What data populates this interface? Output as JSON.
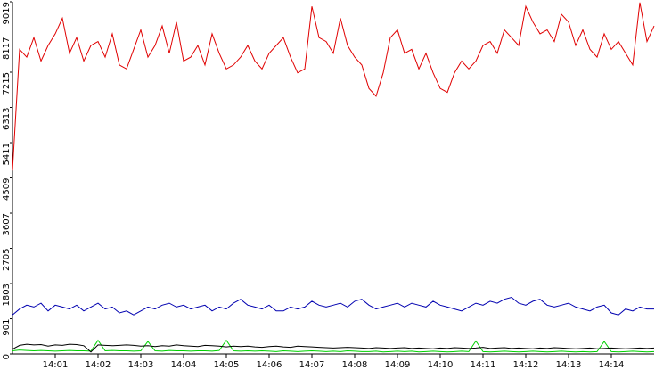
{
  "chart_data": {
    "type": "line",
    "categories": [
      null,
      null,
      null,
      null,
      null,
      null,
      "14:01",
      null,
      null,
      null,
      null,
      null,
      "14:02",
      null,
      null,
      null,
      null,
      null,
      "14:03",
      null,
      null,
      null,
      null,
      null,
      "14:04",
      null,
      null,
      null,
      null,
      null,
      "14:05",
      null,
      null,
      null,
      null,
      null,
      "14:06",
      null,
      null,
      null,
      null,
      null,
      "14:07",
      null,
      null,
      null,
      null,
      null,
      "14:08",
      null,
      null,
      null,
      null,
      null,
      "14:09",
      null,
      null,
      null,
      null,
      null,
      "14:10",
      null,
      null,
      null,
      null,
      null,
      "14:11",
      null,
      null,
      null,
      null,
      null,
      "14:12",
      null,
      null,
      null,
      null,
      null,
      "14:13",
      null,
      null,
      null,
      null,
      null,
      "14:14",
      null,
      null,
      null,
      null,
      null,
      null
    ],
    "series": [
      {
        "color": "#e00000",
        "values": [
          4700,
          7800,
          7600,
          8100,
          7500,
          7900,
          8200,
          8600,
          7700,
          8100,
          7500,
          7900,
          8000,
          7600,
          8200,
          7400,
          7300,
          7800,
          8300,
          7600,
          7900,
          8400,
          7700,
          8500,
          7500,
          7600,
          7900,
          7400,
          8200,
          7700,
          7300,
          7400,
          7600,
          7900,
          7500,
          7300,
          7700,
          7900,
          8100,
          7600,
          7200,
          7300,
          8900,
          8100,
          8000,
          7700,
          8600,
          7900,
          7600,
          7400,
          6800,
          6600,
          7200,
          8100,
          8300,
          7700,
          7800,
          7300,
          7700,
          7200,
          6800,
          6700,
          7200,
          7500,
          7300,
          7500,
          7900,
          8000,
          7700,
          8300,
          8100,
          7900,
          8900,
          8500,
          8200,
          8300,
          8000,
          8700,
          8500,
          7900,
          8300,
          7800,
          7600,
          8200,
          7800,
          8000,
          7700,
          7400,
          9000,
          8000,
          8400
        ]
      },
      {
        "color": "#0000b0",
        "values": [
          1000,
          1150,
          1250,
          1200,
          1300,
          1100,
          1250,
          1200,
          1150,
          1250,
          1100,
          1200,
          1300,
          1150,
          1200,
          1050,
          1100,
          1000,
          1100,
          1200,
          1150,
          1250,
          1300,
          1200,
          1250,
          1150,
          1200,
          1250,
          1100,
          1200,
          1150,
          1300,
          1400,
          1250,
          1200,
          1150,
          1250,
          1100,
          1100,
          1200,
          1150,
          1200,
          1350,
          1250,
          1200,
          1250,
          1300,
          1200,
          1350,
          1400,
          1250,
          1150,
          1200,
          1250,
          1300,
          1200,
          1300,
          1250,
          1200,
          1350,
          1250,
          1200,
          1150,
          1100,
          1200,
          1300,
          1250,
          1350,
          1300,
          1400,
          1450,
          1300,
          1250,
          1350,
          1400,
          1250,
          1200,
          1250,
          1300,
          1200,
          1150,
          1100,
          1200,
          1250,
          1050,
          1000,
          1150,
          1100,
          1200,
          1150,
          1150
        ]
      },
      {
        "color": "#000000",
        "values": [
          120,
          220,
          250,
          230,
          240,
          200,
          230,
          220,
          250,
          240,
          210,
          50,
          230,
          220,
          210,
          220,
          230,
          220,
          200,
          210,
          190,
          210,
          200,
          230,
          210,
          200,
          190,
          220,
          210,
          200,
          180,
          200,
          190,
          200,
          180,
          170,
          190,
          200,
          180,
          170,
          200,
          190,
          180,
          170,
          160,
          150,
          160,
          170,
          160,
          150,
          140,
          160,
          150,
          140,
          150,
          160,
          140,
          150,
          140,
          130,
          150,
          140,
          160,
          150,
          140,
          150,
          170,
          140,
          150,
          160,
          140,
          150,
          140,
          130,
          150,
          140,
          160,
          150,
          140,
          130,
          140,
          150,
          130,
          140,
          150,
          140,
          130,
          140,
          150,
          140,
          150
        ]
      },
      {
        "color": "#00d000",
        "values": [
          80,
          100,
          90,
          80,
          90,
          80,
          70,
          80,
          90,
          80,
          80,
          70,
          350,
          80,
          90,
          80,
          80,
          70,
          80,
          320,
          80,
          70,
          90,
          80,
          80,
          70,
          80,
          80,
          70,
          90,
          350,
          80,
          70,
          80,
          70,
          80,
          70,
          60,
          80,
          70,
          60,
          70,
          80,
          70,
          60,
          70,
          60,
          80,
          70,
          60,
          60,
          70,
          50,
          60,
          70,
          60,
          70,
          50,
          60,
          70,
          60,
          50,
          60,
          70,
          60,
          330,
          60,
          50,
          60,
          70,
          60,
          50,
          60,
          70,
          60,
          50,
          60,
          70,
          60,
          50,
          60,
          50,
          60,
          320,
          60,
          50,
          60,
          70,
          60,
          50,
          60
        ]
      }
    ],
    "ylim": [
      0,
      9019
    ],
    "yticks": [
      0,
      901,
      1803,
      2705,
      3607,
      4509,
      5411,
      6313,
      7215,
      8117,
      9019
    ]
  }
}
